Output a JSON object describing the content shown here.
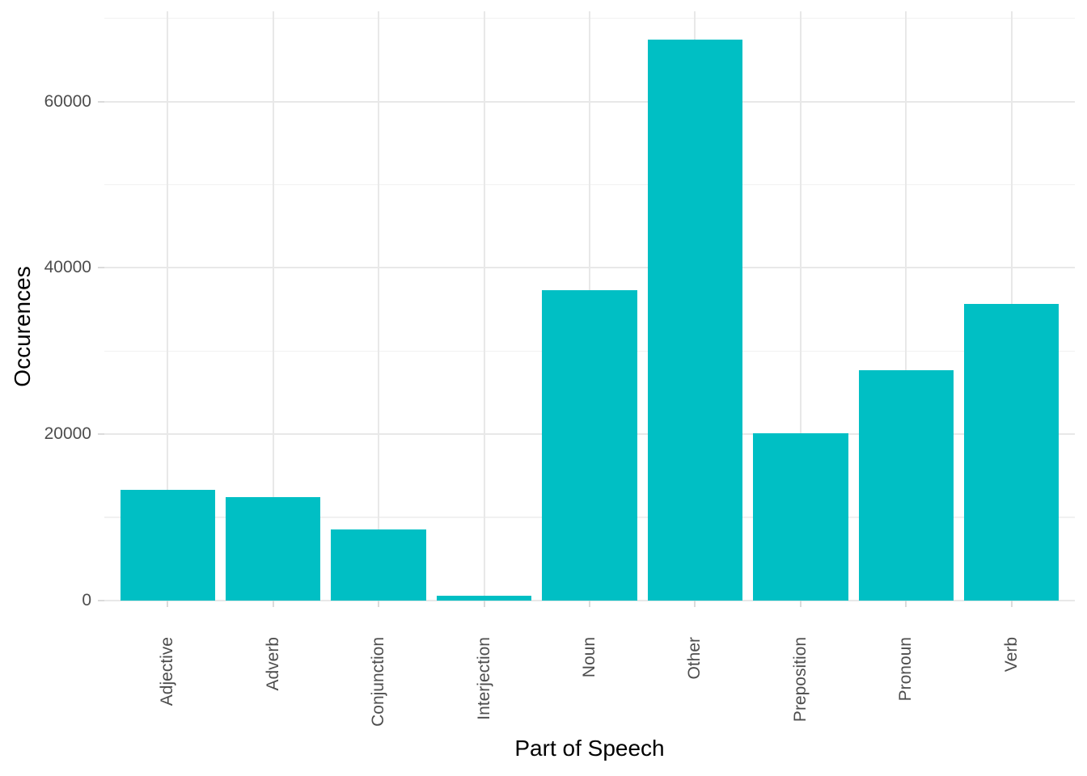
{
  "chart_data": {
    "type": "bar",
    "title": "",
    "xlabel": "Part of Speech",
    "ylabel": "Occurences",
    "categories": [
      "Adjective",
      "Adverb",
      "Conjunction",
      "Interjection",
      "Noun",
      "Other",
      "Preposition",
      "Pronoun",
      "Verb"
    ],
    "values": [
      13300,
      12400,
      8550,
      620,
      37300,
      67400,
      20100,
      27700,
      35650
    ],
    "y_ticks": [
      {
        "value": 0,
        "label": "0"
      },
      {
        "value": 20000,
        "label": "20000"
      },
      {
        "value": 40000,
        "label": "40000"
      },
      {
        "value": 60000,
        "label": "60000"
      }
    ],
    "y_minor_ticks": [
      10000,
      30000,
      50000,
      70000
    ],
    "ylim": [
      0,
      70850
    ],
    "legend": "none",
    "grid": "major-and-minor",
    "bar_color": "#00BFC4",
    "colors": {
      "background": "#FFFFFF",
      "grid_major": "#E8E8E8",
      "grid_minor": "#F1F1F1",
      "tick_mark": "#DBDBDB",
      "axis_text": "#4D4D4D",
      "axis_title": "#000000"
    }
  }
}
